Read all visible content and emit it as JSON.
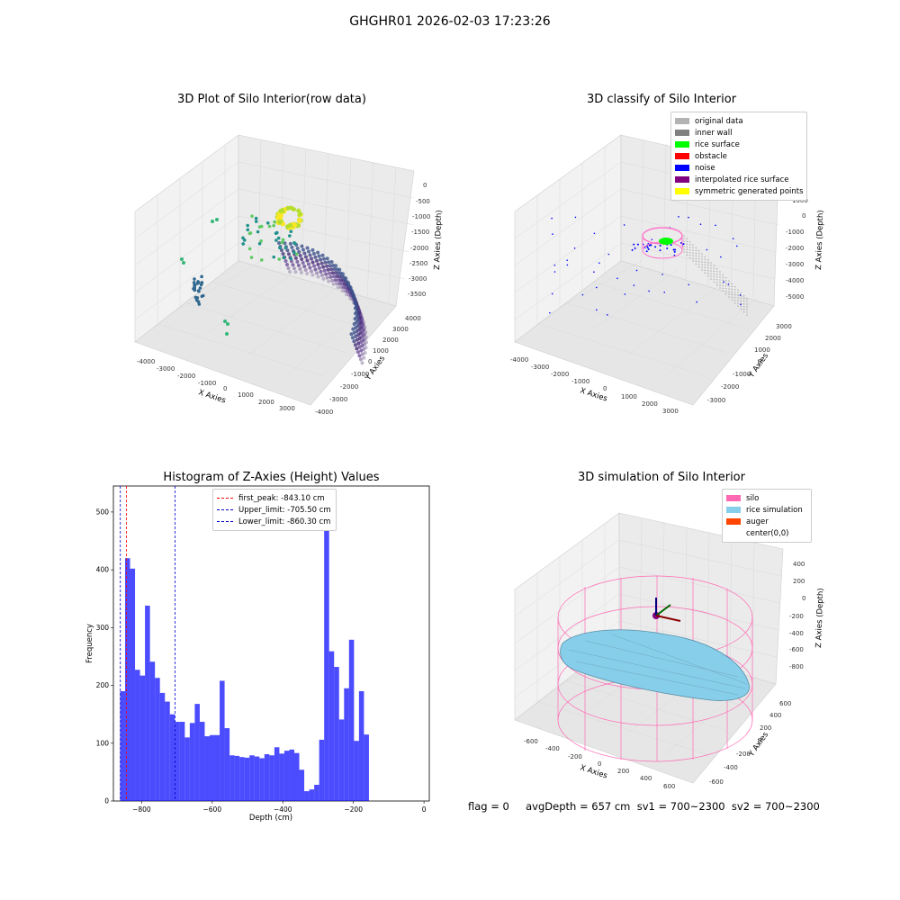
{
  "figure": {
    "suptitle": "GHGHR01 2026-02-03 17:23:26",
    "footer": "flag = 0     avgDepth = 657 cm  sv1 = 700~2300  sv2 = 700~2300"
  },
  "panels": {
    "p1": {
      "title": "3D Plot of Silo Interior(row data)",
      "xlabel": "X Axies",
      "ylabel": "Y Axies",
      "zlabel": "Z Axies (Depth)",
      "xticks": [
        "-4000",
        "-3000",
        "-2000",
        "-1000",
        "0",
        "1000",
        "2000",
        "3000"
      ],
      "yticks": [
        "-4000",
        "-3000",
        "-2000",
        "-1000",
        "0",
        "1000",
        "2000",
        "3000",
        "4000"
      ],
      "zticks": [
        "0",
        "-500",
        "-1000",
        "-1500",
        "-2000",
        "-2500",
        "-3000",
        "-3500"
      ]
    },
    "p2": {
      "title": "3D classify of Silo Interior",
      "xlabel": "X Axies",
      "ylabel": "Y Axies",
      "zlabel": "Z Axies (Depth)",
      "xticks": [
        "-4000",
        "-3000",
        "-2000",
        "-1000",
        "0",
        "1000",
        "2000",
        "3000"
      ],
      "yticks": [
        "-3000",
        "-2000",
        "-1000",
        "0",
        "1000",
        "2000",
        "3000"
      ],
      "zticks": [
        "2000",
        "1000",
        "0",
        "-1000",
        "-2000",
        "-3000",
        "-4000",
        "-5000"
      ],
      "legend": [
        {
          "label": "original data",
          "color": "#b3b3b3"
        },
        {
          "label": "inner wall",
          "color": "#808080"
        },
        {
          "label": "rice surface",
          "color": "#00ff00"
        },
        {
          "label": "obstacle",
          "color": "#ff0000"
        },
        {
          "label": "noise",
          "color": "#0000ff"
        },
        {
          "label": "interpolated rice surface",
          "color": "#800080"
        },
        {
          "label": "symmetric generated points",
          "color": "#ffff00"
        }
      ]
    },
    "p4": {
      "title": "3D simulation of Silo Interior",
      "xlabel": "X Axies",
      "ylabel": "Y Axies",
      "zlabel": "Z Axies (Depth)",
      "xticks": [
        "-600",
        "-400",
        "-200",
        "0",
        "200",
        "400",
        "600"
      ],
      "yticks": [
        "-600",
        "-400",
        "-200",
        "0",
        "200",
        "400",
        "600"
      ],
      "zticks": [
        "400",
        "200",
        "0",
        "-200",
        "-400",
        "-600",
        "-800"
      ],
      "legend": [
        {
          "label": "silo",
          "color": "#ff69b4"
        },
        {
          "label": "rice simulation",
          "color": "#87ceeb"
        },
        {
          "label": "auger",
          "color": "#ff4500"
        },
        {
          "label": "center(0,0)",
          "color": "#ffffff"
        }
      ]
    }
  },
  "chart_data": [
    {
      "type": "bar",
      "title": "Histogram of Z-Axies (Height) Values",
      "xlabel": "Depth (cm)",
      "ylabel": "Frequency",
      "xlim": [
        -880,
        15
      ],
      "ylim": [
        0,
        545
      ],
      "xticks": [
        -800,
        -600,
        -400,
        -200,
        0
      ],
      "yticks": [
        0,
        100,
        200,
        300,
        400,
        500
      ],
      "bin_start": -861,
      "bin_width": 14.1,
      "color": "#0000ff",
      "values": [
        190,
        420,
        402,
        227,
        217,
        338,
        241,
        213,
        187,
        172,
        150,
        137,
        137,
        110,
        135,
        168,
        137,
        112,
        114,
        114,
        208,
        126,
        79,
        78,
        76,
        75,
        79,
        77,
        74,
        81,
        79,
        93,
        82,
        87,
        89,
        83,
        54,
        17,
        20,
        28,
        106,
        519,
        259,
        232,
        141,
        195,
        279,
        104,
        190,
        115
      ],
      "reference_lines": [
        {
          "label": "first_peak: -843.10 cm",
          "value": -843.1,
          "color": "#ff0000"
        },
        {
          "label": "Upper_limit: -705.50 cm",
          "value": -705.5,
          "color": "#0000cc"
        },
        {
          "label": "Lower_limit: -860.30 cm",
          "value": -860.3,
          "color": "#0000cc"
        }
      ]
    }
  ]
}
